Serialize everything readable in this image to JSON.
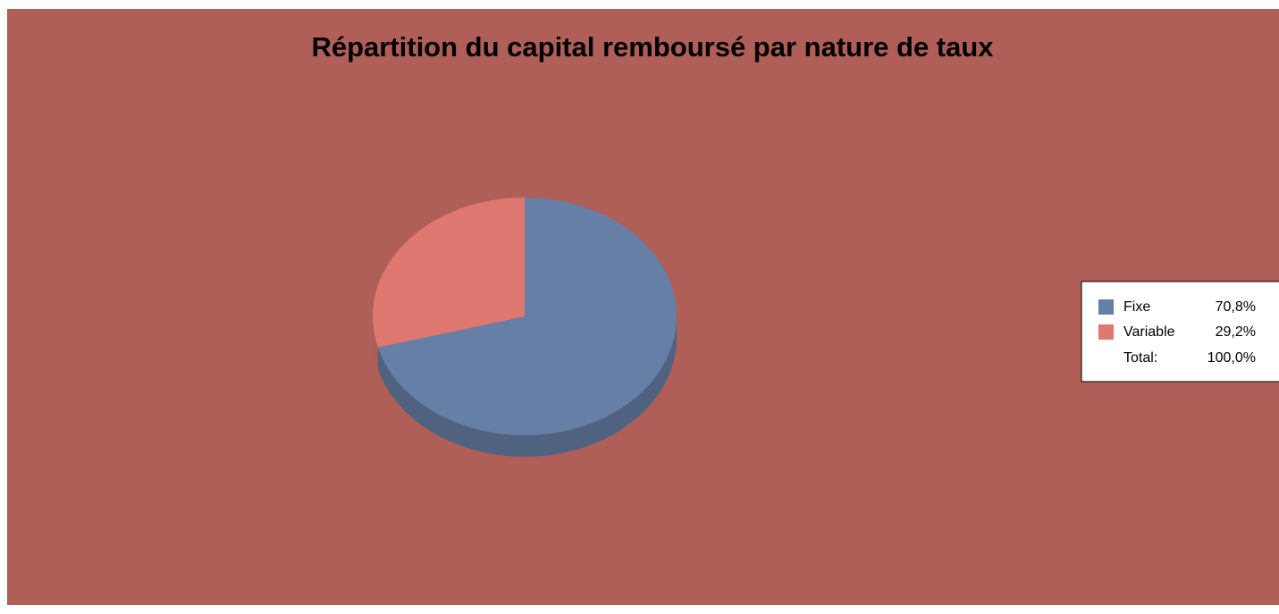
{
  "chart_data": {
    "type": "pie",
    "title": "Répartition du capital remboursé par nature de taux",
    "categories": [
      "Fixe",
      "Variable"
    ],
    "values": [
      70.8,
      29.2
    ],
    "value_labels": [
      "70,8%",
      "29,2%"
    ],
    "colors": [
      "#667fa6",
      "#e07872"
    ],
    "background": "#af5e58",
    "total_text": "Total:",
    "total": {
      "value": 100,
      "label": "100,0%"
    },
    "legend": "right"
  }
}
